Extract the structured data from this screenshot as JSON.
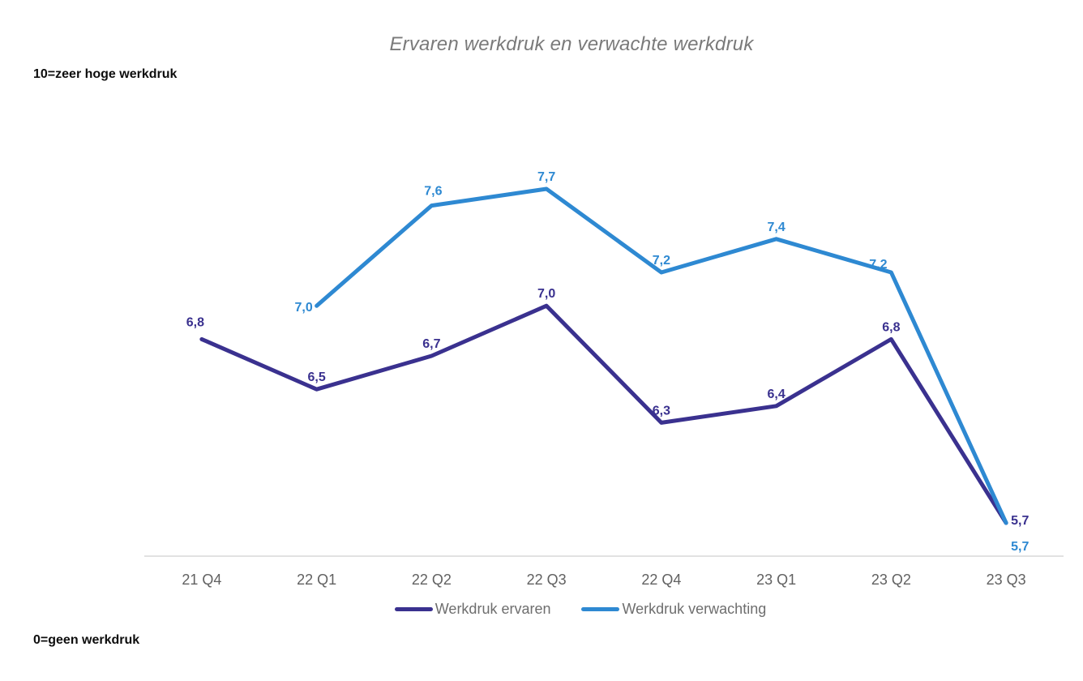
{
  "chart_data": {
    "type": "line",
    "title": "Ervaren werkdruk en verwachte werkdruk",
    "value_axis_top_note": "10=zeer hoge werkdruk",
    "value_axis_bottom_note": "0=geen werkdruk",
    "categories": [
      "21 Q4",
      "22 Q1",
      "22 Q2",
      "22 Q3",
      "22 Q4",
      "23 Q1",
      "23 Q2",
      "23 Q3"
    ],
    "series": [
      {
        "name": "Werkdruk ervaren",
        "color_key": "ervaren",
        "values": [
          6.8,
          6.5,
          6.7,
          7.0,
          6.3,
          6.4,
          6.8,
          5.7
        ],
        "labels": [
          "6,8",
          "6,5",
          "6,7",
          "7,0",
          "6,3",
          "6,4",
          "6,8",
          "5,7"
        ]
      },
      {
        "name": "Werkdruk verwachting",
        "color_key": "verwachting",
        "values": [
          null,
          7.0,
          7.6,
          7.7,
          7.2,
          7.4,
          7.2,
          5.7
        ],
        "labels": [
          "",
          "7,0",
          "7,6",
          "7,7",
          "7,2",
          "7,4",
          "7,2",
          "5,7"
        ]
      }
    ],
    "legend_position": "bottom",
    "grid": false
  },
  "colors": {
    "ervaren": "#3a318f",
    "verwachting": "#2e89d2",
    "axis_line": "#d9d9d9",
    "tick_text": "#616161",
    "legend_text": "#6e6e6e",
    "title_text": "#7a7a7a",
    "note_text": "#0d0d0d"
  }
}
